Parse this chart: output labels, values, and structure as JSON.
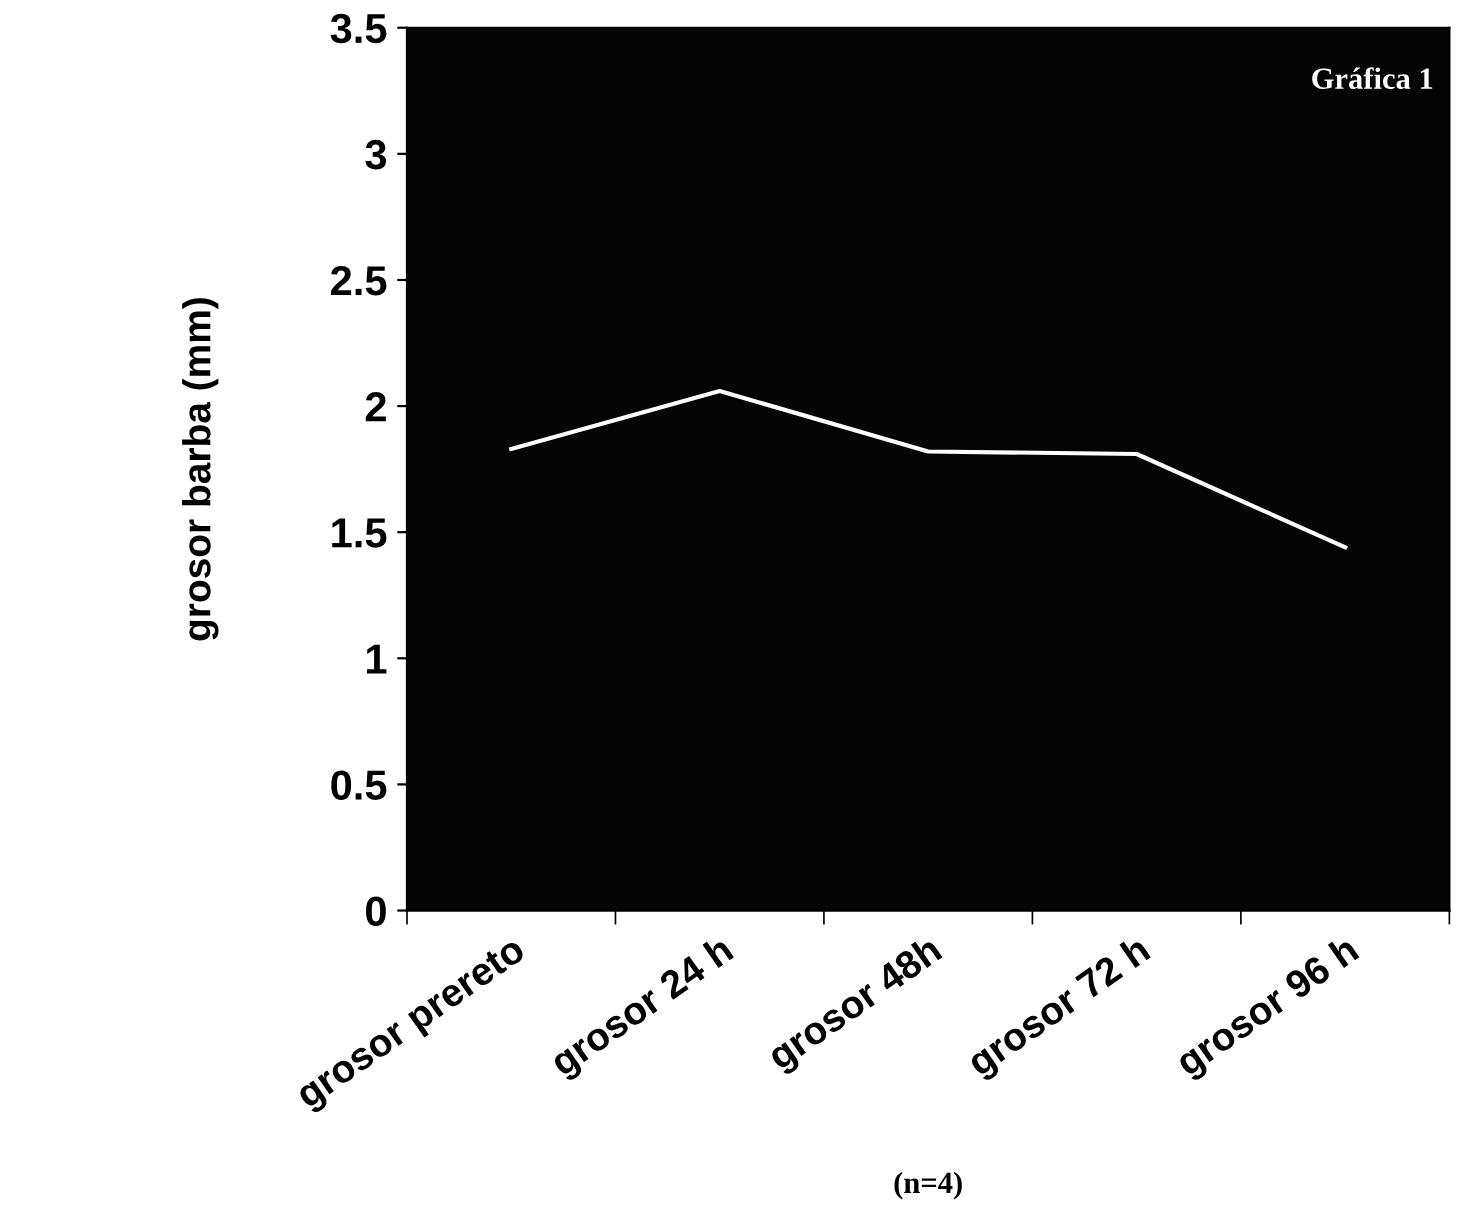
{
  "chart_data": {
    "type": "line",
    "categories": [
      "grosor prereto",
      "grosor 24 h",
      "grosor 48h",
      "grosor 72 h",
      "grosor 96 h"
    ],
    "series": [
      {
        "color": "#ffffff",
        "values": [
          1.83,
          2.06,
          1.82,
          1.81,
          1.44
        ]
      }
    ],
    "ylabel": "grosor barba (mm)",
    "xlabel": "(n=4)",
    "annotations": [
      "Gráfica 1"
    ],
    "ylim": [
      0,
      3.5
    ],
    "yticks": [
      0,
      0.5,
      1,
      1.5,
      2,
      2.5,
      3,
      3.5
    ],
    "grid": false,
    "legend": false,
    "marker": "none",
    "line_style": "solid"
  }
}
